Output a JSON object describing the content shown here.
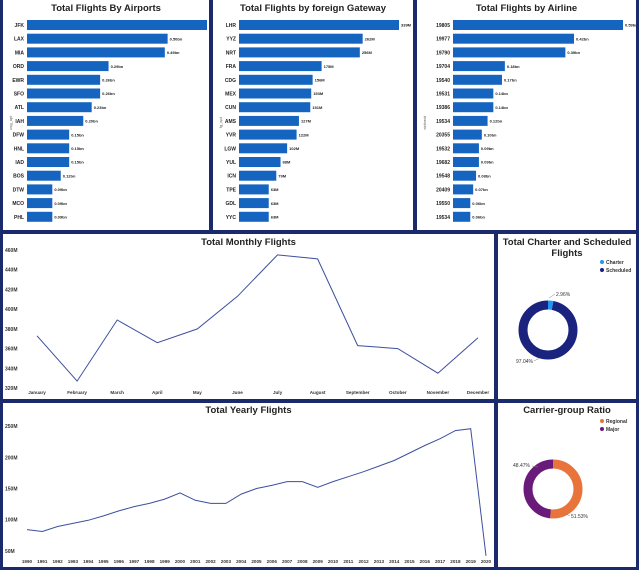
{
  "panels": {
    "airports": {
      "title": "Total Flights By Airports"
    },
    "gateway": {
      "title": "Total Flights by foreign Gateway"
    },
    "airline": {
      "title": "Total Flights by Airline"
    },
    "monthly": {
      "title": "Total Monthly Flights"
    },
    "charter": {
      "title": "Total Charter and Scheduled Flights"
    },
    "yearly": {
      "title": "Total Yearly Flights"
    },
    "carrier": {
      "title": "Carrier-group Ratio"
    }
  },
  "colors": {
    "bar": "#1565c0",
    "line": "#3d4f9e",
    "charter": "#2196f3",
    "scheduled": "#1a237e",
    "regional": "#e8743b",
    "major": "#6a1b7a",
    "frame": "#1a2a6c"
  },
  "chart_data": [
    {
      "id": "airports",
      "type": "bar",
      "orientation": "horizontal",
      "title": "Total Flights By Airports",
      "ylabel": "usg_apt",
      "categories": [
        "JFK",
        "LAX",
        "MIA",
        "ORD",
        "EWR",
        "SFO",
        "ATL",
        "IAH",
        "DFW",
        "HNL",
        "IAD",
        "BOS",
        "DTW",
        "MCO",
        "PHL"
      ],
      "values": [
        0.64,
        0.5,
        0.49,
        0.29,
        0.26,
        0.26,
        0.23,
        0.2,
        0.15,
        0.15,
        0.15,
        0.12,
        0.09,
        0.09,
        0.09
      ],
      "labels": [
        "0.64bn",
        "0.50bn",
        "0.49bn",
        "0.29bn",
        "0.26bn",
        "0.26bn",
        "0.23bn",
        "0.20bn",
        "0.15bn",
        "0.15bn",
        "0.15bn",
        "0.12bn",
        "0.09bn",
        "0.09bn",
        "0.09bn"
      ]
    },
    {
      "id": "gateway",
      "type": "bar",
      "orientation": "horizontal",
      "title": "Total Flights by foreign Gateway",
      "ylabel": "fg_apt",
      "categories": [
        "LHR",
        "YYZ",
        "NRT",
        "FRA",
        "CDG",
        "MEX",
        "CUN",
        "AMS",
        "YVR",
        "LGW",
        "YUL",
        "ICN",
        "TPE",
        "GDL",
        "YYC"
      ],
      "values": [
        339,
        262,
        256,
        175,
        156,
        153,
        151,
        127,
        122,
        102,
        88,
        79,
        63,
        63,
        63
      ],
      "labels": [
        "339M",
        "262M",
        "256M",
        "175M",
        "156M",
        "153M",
        "151M",
        "127M",
        "122M",
        "102M",
        "88M",
        "79M",
        "63M",
        "63M",
        "63M"
      ]
    },
    {
      "id": "airline",
      "type": "bar",
      "orientation": "horizontal",
      "title": "Total Flights by Airline",
      "ylabel": "airlineid",
      "categories": [
        "19805",
        "19977",
        "19790",
        "19704",
        "19540",
        "19531",
        "19386",
        "19534",
        "20355",
        "19532",
        "19682",
        "19548",
        "20409",
        "19550",
        "19534"
      ],
      "values": [
        0.59,
        0.42,
        0.39,
        0.18,
        0.17,
        0.14,
        0.14,
        0.12,
        0.1,
        0.09,
        0.09,
        0.08,
        0.07,
        0.06,
        0.06
      ],
      "labels": [
        "0.59bn",
        "0.42bn",
        "0.39bn",
        "0.18bn",
        "0.17bn",
        "0.14bn",
        "0.14bn",
        "0.12bn",
        "0.10bn",
        "0.09bn",
        "0.09bn",
        "0.08bn",
        "0.07bn",
        "0.06bn",
        "0.06bn"
      ]
    },
    {
      "id": "monthly",
      "type": "line",
      "title": "Total Monthly Flights",
      "categories": [
        "January",
        "February",
        "March",
        "April",
        "May",
        "June",
        "July",
        "August",
        "September",
        "October",
        "November",
        "December"
      ],
      "values": [
        373,
        327,
        389,
        366,
        380,
        413,
        455,
        451,
        363,
        360,
        335,
        371
      ],
      "ylim": [
        320,
        460
      ],
      "yticks": [
        320,
        340,
        360,
        380,
        400,
        420,
        440,
        460
      ],
      "ytick_labels": [
        "320M",
        "340M",
        "360M",
        "380M",
        "400M",
        "420M",
        "440M",
        "460M"
      ]
    },
    {
      "id": "charter",
      "type": "pie",
      "title": "Total Charter and Scheduled Flights",
      "categories": [
        "Charter",
        "Scheduled"
      ],
      "values": [
        2.96,
        97.04
      ],
      "labels": [
        "2.96%",
        "97.04%"
      ]
    },
    {
      "id": "yearly",
      "type": "line",
      "title": "Total Yearly Flights",
      "categories": [
        "1990",
        "1991",
        "1992",
        "1993",
        "1994",
        "1995",
        "1996",
        "1997",
        "1998",
        "1999",
        "2000",
        "2001",
        "2002",
        "2003",
        "2004",
        "2005",
        "2006",
        "2007",
        "2008",
        "2009",
        "2010",
        "2011",
        "2012",
        "2013",
        "2014",
        "2015",
        "2016",
        "2017",
        "2018",
        "2019",
        "2020"
      ],
      "values": [
        84,
        81,
        89,
        94,
        99,
        106,
        114,
        121,
        126,
        133,
        143,
        131,
        126,
        126,
        141,
        150,
        155,
        161,
        161,
        152,
        161,
        169,
        177,
        186,
        195,
        207,
        219,
        230,
        243,
        246,
        42
      ],
      "ylim": [
        40,
        260
      ],
      "yticks": [
        50,
        100,
        150,
        200,
        250
      ],
      "ytick_labels": [
        "50M",
        "100M",
        "150M",
        "200M",
        "250M"
      ]
    },
    {
      "id": "carrier",
      "type": "pie",
      "title": "Carrier-group Ratio",
      "categories": [
        "Regional",
        "Major"
      ],
      "values": [
        51.53,
        48.47
      ],
      "labels": [
        "51.53%",
        "48.47%"
      ]
    }
  ]
}
